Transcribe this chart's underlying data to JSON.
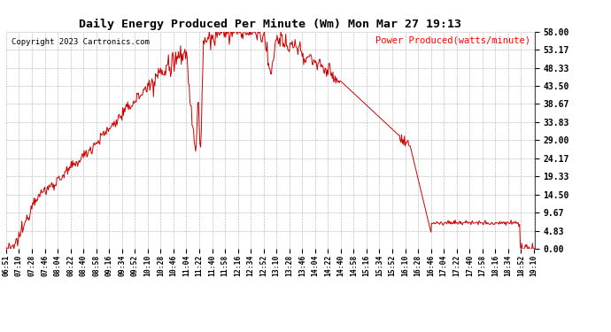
{
  "title": "Daily Energy Produced Per Minute (Wm) Mon Mar 27 19:13",
  "copyright": "Copyright 2023 Cartronics.com",
  "legend_label": "Power Produced(watts/minute)",
  "legend_color": "#ff0000",
  "line_color": "#cc0000",
  "background_color": "#ffffff",
  "grid_color": "#999999",
  "ymin": 0.0,
  "ymax": 58.0,
  "yticks": [
    0.0,
    4.83,
    9.67,
    14.5,
    19.33,
    24.17,
    29.0,
    33.83,
    38.67,
    43.5,
    48.33,
    53.17,
    58.0
  ],
  "ytick_labels": [
    "0.00",
    "4.83",
    "9.67",
    "14.50",
    "19.33",
    "24.17",
    "29.00",
    "33.83",
    "38.67",
    "43.50",
    "48.33",
    "53.17",
    "58.00"
  ],
  "x_start_hour": 6,
  "x_start_min": 51,
  "x_end_hour": 19,
  "x_end_min": 10,
  "xtick_labels": [
    "06:51",
    "07:10",
    "07:28",
    "07:46",
    "08:04",
    "08:22",
    "08:40",
    "08:58",
    "09:16",
    "09:34",
    "09:52",
    "10:10",
    "10:28",
    "10:46",
    "11:04",
    "11:22",
    "11:40",
    "11:58",
    "12:16",
    "12:34",
    "12:52",
    "13:10",
    "13:28",
    "13:46",
    "14:04",
    "14:22",
    "14:40",
    "14:58",
    "15:16",
    "15:34",
    "15:52",
    "16:10",
    "16:28",
    "16:46",
    "17:04",
    "17:22",
    "17:40",
    "17:58",
    "18:16",
    "18:34",
    "18:52",
    "19:10"
  ],
  "title_fontsize": 9.5,
  "copyright_fontsize": 6.5,
  "legend_fontsize": 7.5,
  "ytick_fontsize": 7,
  "xtick_fontsize": 5.8
}
